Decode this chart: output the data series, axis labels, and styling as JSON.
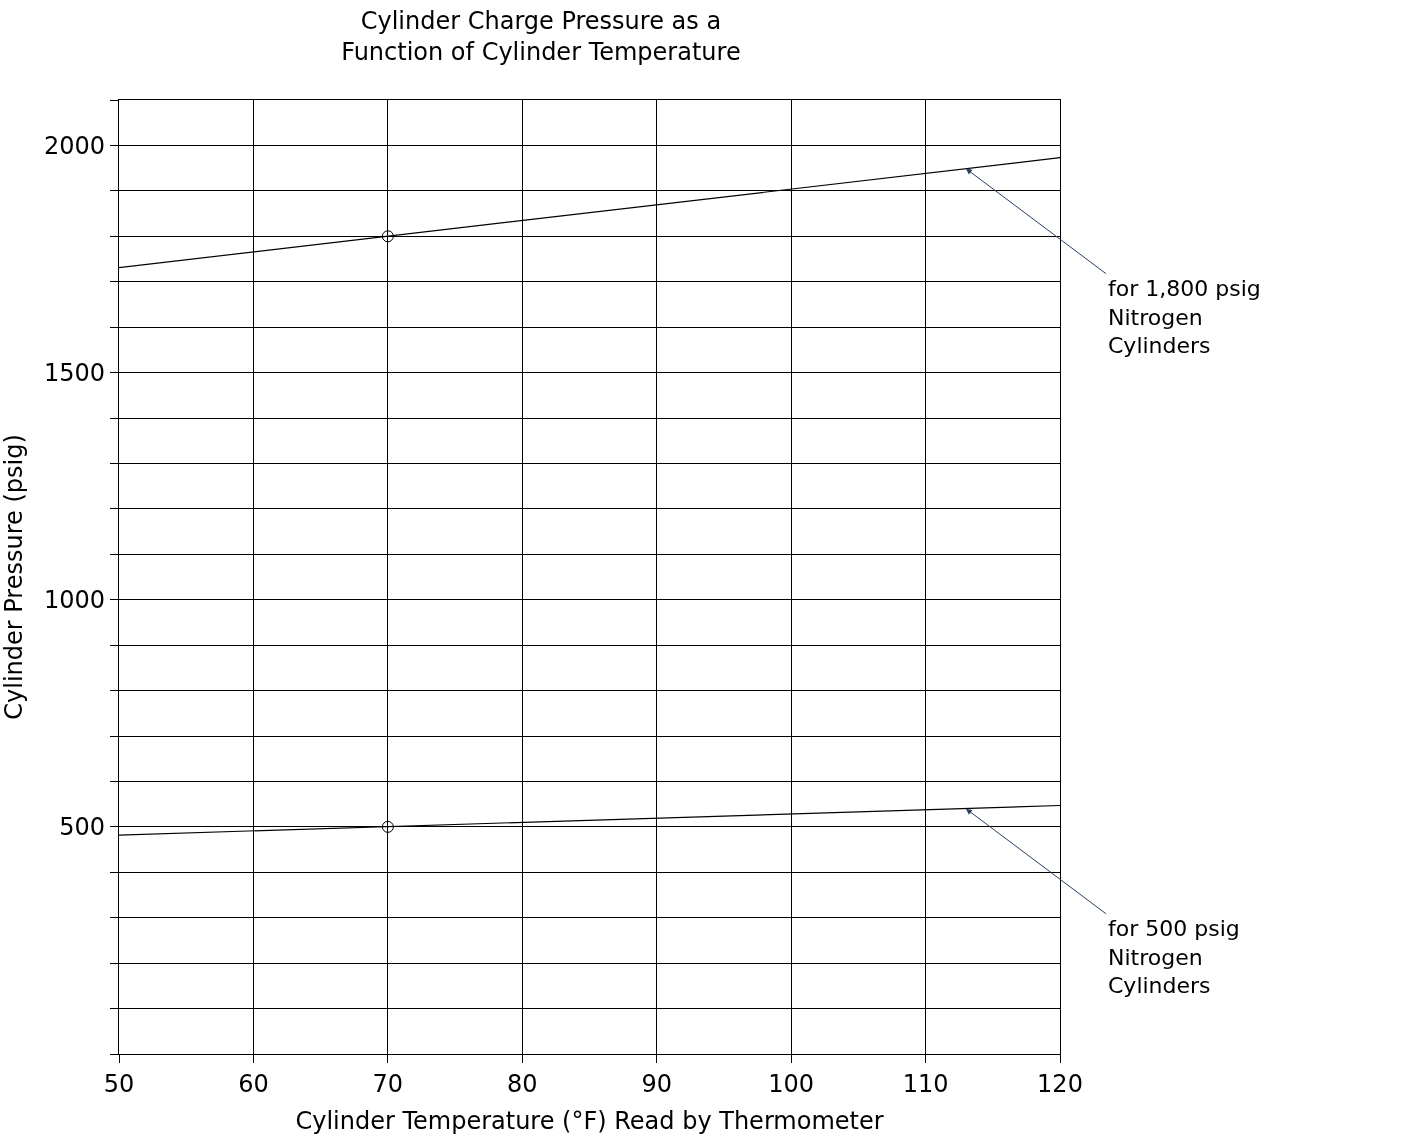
{
  "chart_data": {
    "type": "line",
    "title": "Cylinder Charge Pressure as a\nFunction of Cylinder Temperature",
    "xlabel": "Cylinder Temperature (°F) Read by Thermometer",
    "ylabel": "Cylinder Pressure (psig)",
    "series": [
      {
        "color": "#000000",
        "x": [
          50,
          120
        ],
        "values": [
          1731,
          1973
        ],
        "marker": "none"
      },
      {
        "color": "#000000",
        "x": [
          50,
          120
        ],
        "values": [
          482,
          547
        ],
        "marker": "none"
      },
      {
        "type": "scatter",
        "color": "#000000",
        "x": [
          70,
          70
        ],
        "values": [
          1800,
          500
        ],
        "marker": "circle"
      }
    ],
    "annotations": [
      {
        "text": "for 1,800 psig\nNitrogen\nCylinders",
        "x": 113,
        "y": 1949
      },
      {
        "text": "for 500 psig\nNitrogen\nCylinders",
        "x": 113,
        "y": 540
      }
    ],
    "xlim": [
      50,
      120
    ],
    "xticks": [
      50,
      60,
      70,
      80,
      90,
      100,
      110,
      120
    ],
    "ylim": [
      0,
      2100
    ],
    "yticks": [
      {
        "value": 0,
        "label": null
      },
      {
        "value": 100,
        "label": null
      },
      {
        "value": 200,
        "label": null
      },
      {
        "value": 300,
        "label": null
      },
      {
        "value": 400,
        "label": null
      },
      500,
      {
        "value": 600,
        "label": null
      },
      {
        "value": 700,
        "label": null
      },
      {
        "value": 800,
        "label": null
      },
      {
        "value": 900,
        "label": null
      },
      1000,
      {
        "value": 1100,
        "label": null
      },
      {
        "value": 1200,
        "label": null
      },
      {
        "value": 1300,
        "label": null
      },
      {
        "value": 1400,
        "label": null
      },
      1500,
      {
        "value": 1600,
        "label": null
      },
      {
        "value": 1700,
        "label": null
      },
      {
        "value": 1800,
        "label": null
      },
      {
        "value": 1900,
        "label": null
      },
      2000,
      {
        "value": 2100,
        "label": null
      }
    ],
    "grid": true
  }
}
